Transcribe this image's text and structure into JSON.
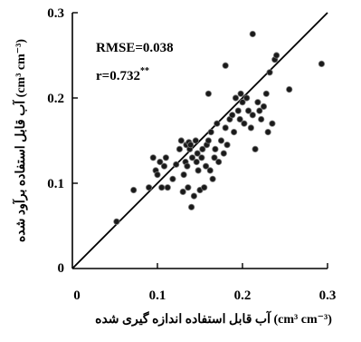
{
  "chart_data": {
    "type": "scatter",
    "xlabel": "آب قابل استفاده اندازه گیری شده (cm³ cm⁻³)",
    "ylabel": "آب قابل استفاده برآود شده (cm³ cm⁻³)",
    "xlim": [
      0,
      0.3
    ],
    "ylim": [
      0,
      0.3
    ],
    "xticks": [
      "0",
      "0.1",
      "0.2",
      "0.3"
    ],
    "yticks": [
      "0",
      "0.1",
      "0.2",
      "0.3"
    ],
    "grid": false,
    "reference_line": "1:1",
    "annotations": {
      "rmse": "RMSE=0.038",
      "r_prefix": "r=0.732",
      "r_superscript": "**"
    },
    "x": [
      0.052,
      0.072,
      0.09,
      0.095,
      0.098,
      0.1,
      0.103,
      0.105,
      0.108,
      0.11,
      0.112,
      0.118,
      0.122,
      0.126,
      0.128,
      0.13,
      0.131,
      0.133,
      0.134,
      0.135,
      0.136,
      0.137,
      0.138,
      0.139,
      0.14,
      0.141,
      0.143,
      0.145,
      0.146,
      0.147,
      0.148,
      0.15,
      0.152,
      0.153,
      0.155,
      0.157,
      0.158,
      0.16,
      0.162,
      0.163,
      0.165,
      0.167,
      0.168,
      0.17,
      0.172,
      0.175,
      0.178,
      0.18,
      0.182,
      0.185,
      0.188,
      0.19,
      0.192,
      0.195,
      0.197,
      0.198,
      0.2,
      0.202,
      0.205,
      0.207,
      0.21,
      0.212,
      0.215,
      0.218,
      0.22,
      0.222,
      0.225,
      0.228,
      0.23,
      0.232,
      0.235,
      0.238,
      0.24,
      0.255,
      0.293,
      0.212,
      0.18,
      0.16
    ],
    "y": [
      0.055,
      0.092,
      0.095,
      0.13,
      0.115,
      0.11,
      0.125,
      0.095,
      0.12,
      0.13,
      0.095,
      0.105,
      0.122,
      0.14,
      0.15,
      0.09,
      0.11,
      0.125,
      0.145,
      0.12,
      0.095,
      0.148,
      0.14,
      0.145,
      0.072,
      0.13,
      0.085,
      0.15,
      0.125,
      0.135,
      0.115,
      0.092,
      0.13,
      0.14,
      0.095,
      0.12,
      0.145,
      0.15,
      0.115,
      0.16,
      0.105,
      0.13,
      0.14,
      0.17,
      0.125,
      0.15,
      0.135,
      0.165,
      0.145,
      0.175,
      0.18,
      0.16,
      0.2,
      0.185,
      0.175,
      0.205,
      0.195,
      0.17,
      0.2,
      0.185,
      0.165,
      0.18,
      0.14,
      0.195,
      0.185,
      0.175,
      0.19,
      0.205,
      0.16,
      0.23,
      0.17,
      0.245,
      0.25,
      0.21,
      0.24,
      0.275,
      0.238,
      0.205
    ]
  }
}
